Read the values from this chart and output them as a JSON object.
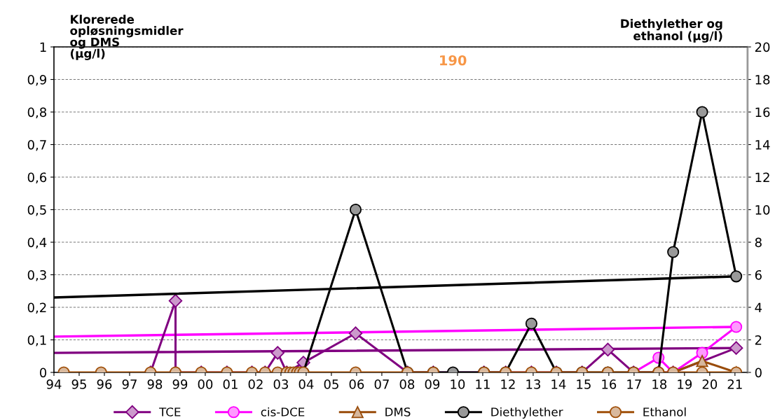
{
  "chart_data": {
    "type": "line",
    "ylabel": "Klorerede\nopløsningsmidler\nog DMS\n(µg/l)",
    "y2label": "Diethylether og\nethanol (µg/l)",
    "xlim": [
      1994,
      2021.5
    ],
    "xticks": [
      {
        "value": 1994,
        "label": "94"
      },
      {
        "value": 1995,
        "label": "95"
      },
      {
        "value": 1996,
        "label": "96"
      },
      {
        "value": 1997,
        "label": "97"
      },
      {
        "value": 1998,
        "label": "98"
      },
      {
        "value": 1999,
        "label": "99"
      },
      {
        "value": 2000,
        "label": "00"
      },
      {
        "value": 2001,
        "label": "01"
      },
      {
        "value": 2002,
        "label": "02"
      },
      {
        "value": 2003,
        "label": "03"
      },
      {
        "value": 2004,
        "label": "04"
      },
      {
        "value": 2005,
        "label": "05"
      },
      {
        "value": 2006,
        "label": "06"
      },
      {
        "value": 2007,
        "label": "07"
      },
      {
        "value": 2008,
        "label": "08"
      },
      {
        "value": 2009,
        "label": "09"
      },
      {
        "value": 2010,
        "label": "10"
      },
      {
        "value": 2011,
        "label": "11"
      },
      {
        "value": 2012,
        "label": "12"
      },
      {
        "value": 2013,
        "label": "13"
      },
      {
        "value": 2014,
        "label": "14"
      },
      {
        "value": 2015,
        "label": "15"
      },
      {
        "value": 2016,
        "label": "16"
      },
      {
        "value": 2017,
        "label": "17"
      },
      {
        "value": 2018,
        "label": "18"
      },
      {
        "value": 2019,
        "label": "19"
      },
      {
        "value": 2020,
        "label": "20"
      },
      {
        "value": 2021,
        "label": "21"
      }
    ],
    "ylim": [
      0,
      1
    ],
    "yticks": [
      0,
      {
        "value": 0.1,
        "label": "0,1"
      },
      {
        "value": 0.2,
        "label": "0,2"
      },
      {
        "value": 0.3,
        "label": "0,3"
      },
      {
        "value": 0.4,
        "label": "0,4"
      },
      {
        "value": 0.5,
        "label": "0,5"
      },
      {
        "value": 0.6,
        "label": "0,6"
      },
      {
        "value": 0.7,
        "label": "0,7"
      },
      {
        "value": 0.8,
        "label": "0,8"
      },
      {
        "value": 0.9,
        "label": "0,9"
      },
      1
    ],
    "y2lim": [
      0,
      20
    ],
    "y2ticks": [
      0,
      2,
      4,
      6,
      8,
      10,
      12,
      14,
      16,
      18,
      20
    ],
    "grid": "y",
    "legend": "bottom",
    "annotations": [
      "190"
    ],
    "series": [
      {
        "name": "TCE",
        "color": "#800080",
        "marker": "diamond",
        "x": [
          1997.83,
          1998.82,
          1998.82,
          1999.84,
          2000.86,
          2001.85,
          2002.37,
          2002.87,
          2003.23,
          2003.89,
          2005.96,
          2008.02,
          2009.04,
          2011.05,
          2011.91,
          2012.93,
          2013.92,
          2014.94,
          2015.96,
          2016.98,
          2017.97,
          2018.55,
          2021.05
        ],
        "values": [
          0,
          0.22,
          0,
          0,
          0,
          0,
          0,
          0.06,
          0,
          0.03,
          0.12,
          0,
          0,
          0,
          0,
          0,
          0,
          0,
          0.07,
          0,
          0,
          0,
          0.075
        ]
      },
      {
        "name": "cis-DCE",
        "color": "#ff00ff",
        "marker": "circle",
        "x": [
          2016.98,
          2017.97,
          2018.55,
          2019.7,
          2021.05
        ],
        "values": [
          0,
          0.045,
          0,
          0.06,
          0.14
        ]
      },
      {
        "name": "DMS",
        "color": "#994c0a",
        "marker": "triangle",
        "x": [
          2018.55,
          2019.7,
          2021.05
        ],
        "values": [
          0,
          0.035,
          0
        ]
      },
      {
        "name": "Diethylether",
        "color": "#000000",
        "marker": "circle",
        "axis": "y2",
        "x": [
          2003.89,
          2005.96,
          2008.02,
          2009.04,
          2009.82,
          2011.05,
          2011.91,
          2012.93,
          2013.92,
          2014.94,
          2015.96,
          2016.98,
          2017.97,
          2018.55,
          2019.7,
          2021.05
        ],
        "values": [
          0,
          10,
          0,
          0,
          0,
          0,
          0,
          3,
          0,
          0,
          0,
          0,
          0,
          7.4,
          16,
          5.9
        ]
      },
      {
        "name": "Ethanol",
        "color": "#a0500a",
        "marker": "circle",
        "axis": "y2",
        "x": [
          1994.39,
          1995.87,
          1997.83,
          1998.82,
          1999.84,
          2000.86,
          2001.85,
          2002.37,
          2002.87,
          2003.23,
          2003.37,
          2003.5,
          2003.64,
          2003.75,
          2003.89,
          2005.96,
          2008.02,
          2009.04,
          2009.9,
          2011.05,
          2011.91,
          2012.93,
          2013.92,
          2014.94,
          2015.96,
          2016.98,
          2017.97,
          2018.55,
          2019.7,
          2021.05
        ],
        "values": [
          0,
          0,
          0,
          0,
          0,
          0,
          0,
          0,
          0,
          0,
          0,
          0,
          0,
          0,
          0,
          0,
          0,
          0,
          null,
          0,
          0,
          0,
          0,
          0,
          0,
          0,
          0,
          0,
          0,
          0
        ]
      },
      {
        "type": "line",
        "color": "#800080",
        "marker": "none",
        "x": [
          1994,
          2021.05
        ],
        "values": [
          0.06,
          0.075
        ]
      },
      {
        "type": "line",
        "color": "#ff00ff",
        "marker": "none",
        "x": [
          1994,
          2021.05
        ],
        "values": [
          0.11,
          0.14
        ]
      },
      {
        "type": "line",
        "color": "#000000",
        "marker": "none",
        "axis": "y2",
        "x": [
          1994,
          2021.05
        ],
        "values": [
          4.6,
          5.9
        ]
      }
    ]
  }
}
